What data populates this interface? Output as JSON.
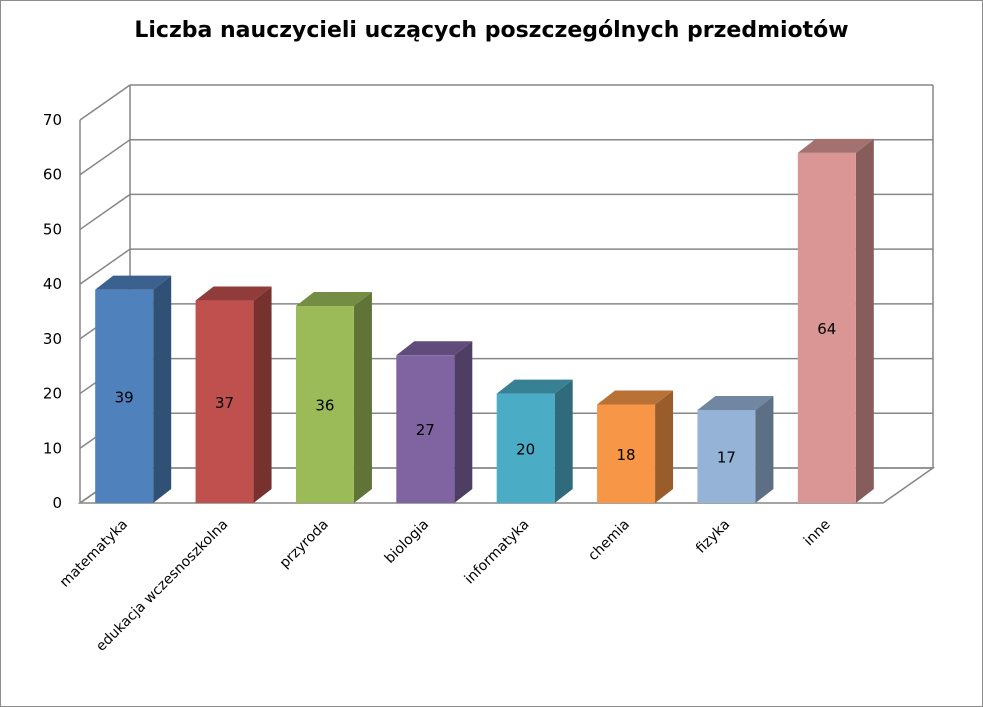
{
  "chart_data": {
    "type": "bar",
    "title": "Liczba nauczycieli uczących poszczególnych przedmiotów",
    "categories": [
      "matematyka",
      "edukacja wczesnoszkolna",
      "przyroda",
      "biologia",
      "informatyka",
      "chemia",
      "fizyka",
      "inne"
    ],
    "values": [
      39,
      37,
      36,
      27,
      20,
      18,
      17,
      64
    ],
    "data_labels": [
      "39",
      "37",
      "36",
      "27",
      "20",
      "18",
      "17",
      "64"
    ],
    "ylim": [
      0,
      70
    ],
    "yticks": [
      "0",
      "10",
      "20",
      "30",
      "40",
      "50",
      "60",
      "70"
    ],
    "grid": true,
    "legend": "none",
    "style": "3d-column",
    "colors": [
      "#4F81BD",
      "#C0504D",
      "#9BBB59",
      "#8064A2",
      "#4BACC6",
      "#F79646",
      "#95B3D7",
      "#D99694"
    ]
  }
}
